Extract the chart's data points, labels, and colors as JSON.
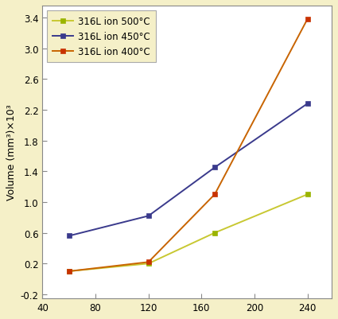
{
  "x_values": [
    60,
    120,
    170,
    240
  ],
  "series": [
    {
      "label": "316L ion 500°C",
      "color": "#c8c832",
      "marker_color": "#9ab400",
      "y": [
        0.01,
        0.02,
        0.06,
        0.11
      ]
    },
    {
      "label": "316L ion 450°C",
      "color": "#3a3a8c",
      "marker_color": "#3a3a8c",
      "y": [
        0.056,
        0.082,
        0.145,
        0.228
      ]
    },
    {
      "label": "316L ion 400°C",
      "color": "#c86400",
      "marker_color": "#c83200",
      "y": [
        0.01,
        0.022,
        0.11,
        0.338
      ]
    }
  ],
  "ylabel": "Volume (mm³)×10³",
  "xlim": [
    40,
    258
  ],
  "ylim": [
    -0.025,
    0.355
  ],
  "xticks": [
    40,
    80,
    120,
    160,
    200,
    240
  ],
  "yticks": [
    -0.02,
    0.02,
    0.06,
    0.1,
    0.14,
    0.18,
    0.22,
    0.26,
    0.3,
    0.34
  ],
  "ytick_labels": [
    "-0.2",
    "0.2",
    "0.6",
    "1.0",
    "1.4",
    "1.8",
    "2.2",
    "2.6",
    "3.0",
    "3.4"
  ],
  "background_color": "#f5f0c8",
  "plot_bg_color": "#ffffff",
  "legend_bg": "#f5f0c8"
}
